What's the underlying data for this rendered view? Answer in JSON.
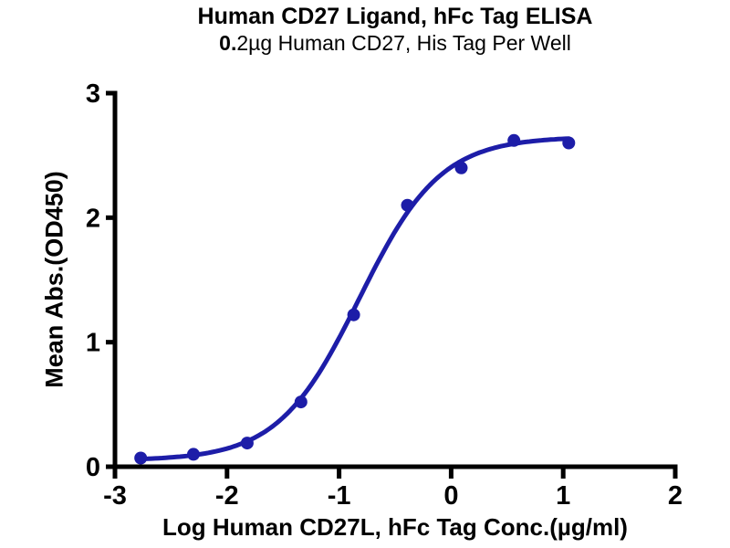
{
  "title": "Human CD27 Ligand, hFc Tag ELISA",
  "subtitle": {
    "bold_part": "0.",
    "regular_part": "2µg Human CD27, His Tag Per Well",
    "full": "0.2µg Human CD27, His Tag Per Well"
  },
  "colors": {
    "accent": "#1d1da8",
    "axis": "#000000",
    "background": "#ffffff"
  },
  "chart_data": {
    "type": "scatter",
    "title": "Human CD27 Ligand, hFc Tag ELISA",
    "subtitle": "0.2µg Human CD27, His Tag Per Well",
    "xlabel": "Log Human CD27L, hFc Tag Conc.(µg/ml)",
    "ylabel": "Mean Abs.(OD450)",
    "xlim": [
      -3,
      2
    ],
    "ylim": [
      0,
      3
    ],
    "x_ticks": [
      -3,
      -2,
      -1,
      0,
      1,
      2
    ],
    "y_ticks": [
      0,
      1,
      2,
      3
    ],
    "grid": false,
    "legend": "none",
    "series": [
      {
        "name": "Human CD27L, hFc Tag",
        "color": "#1d1da8",
        "marker": "circle",
        "points": [
          [
            -2.77,
            0.07
          ],
          [
            -2.3,
            0.1
          ],
          [
            -1.82,
            0.19
          ],
          [
            -1.34,
            0.52
          ],
          [
            -0.87,
            1.22
          ],
          [
            -0.39,
            2.1
          ],
          [
            0.09,
            2.4
          ],
          [
            0.56,
            2.62
          ],
          [
            1.05,
            2.6
          ]
        ],
        "fit_curve": {
          "model": "4PL",
          "bottom": 0.05,
          "top": 2.65,
          "logEC50": -0.82,
          "hill": 1.2,
          "x_start": -2.77,
          "x_end": 1.05
        }
      }
    ]
  }
}
